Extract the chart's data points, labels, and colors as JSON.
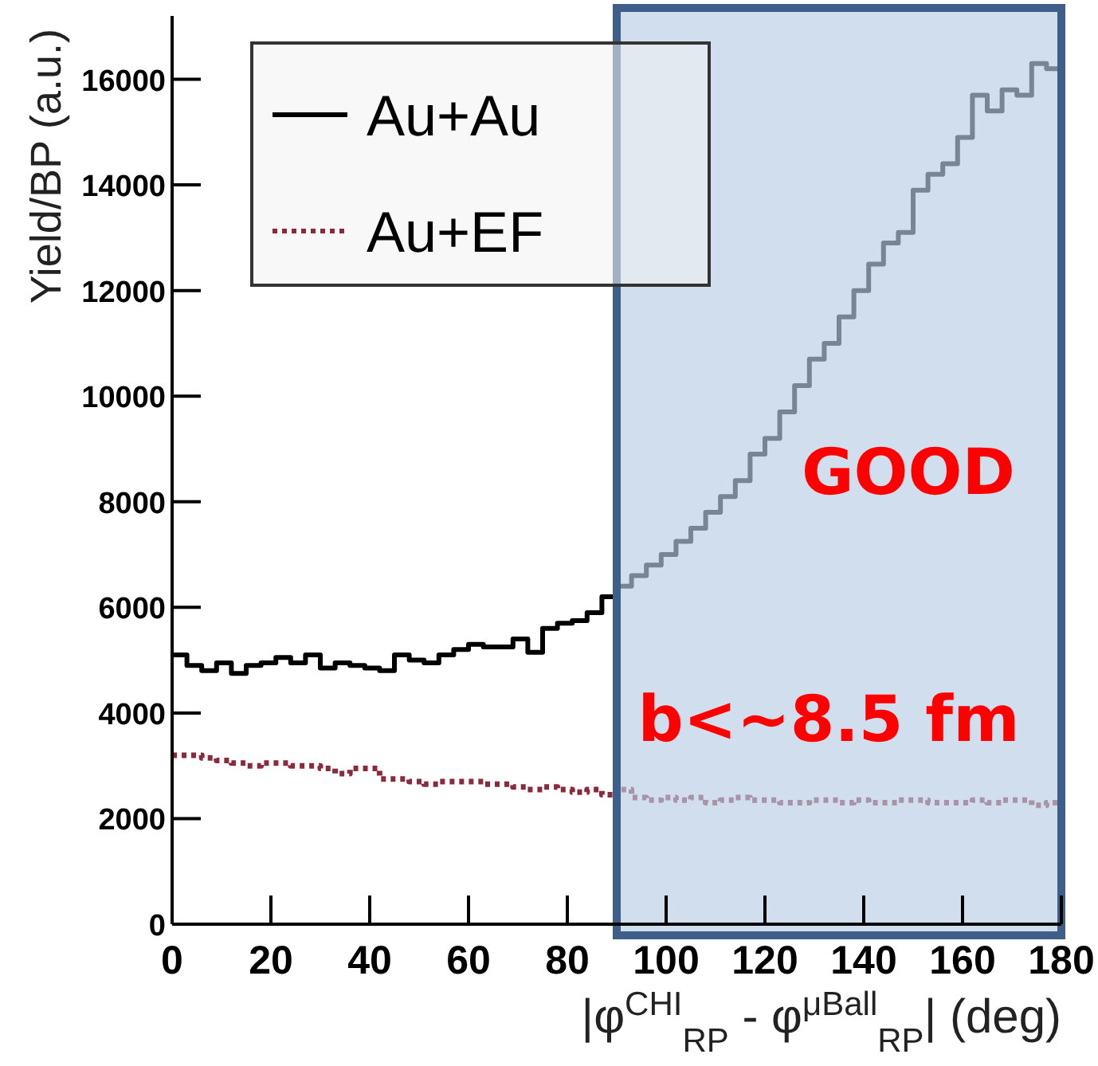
{
  "chart_data": {
    "type": "histogram",
    "xlabel": "|φ$^{CHI}$$_{RP}$ - φ$^{μBall}$$_{RP}$| (deg)",
    "ylabel": "Yield/BP (a.u.)",
    "bins": [
      0,
      3,
      6,
      9,
      12,
      15,
      18,
      21,
      24,
      27,
      30,
      33,
      36,
      39,
      42,
      45,
      48,
      51,
      54,
      57,
      60,
      63,
      66,
      69,
      72,
      75,
      78,
      81,
      84,
      87,
      90,
      93,
      96,
      99,
      102,
      105,
      108,
      111,
      114,
      117,
      120,
      123,
      126,
      129,
      132,
      135,
      138,
      141,
      144,
      147,
      150,
      153,
      156,
      159,
      162,
      165,
      168,
      171,
      174,
      177,
      180
    ],
    "series": [
      {
        "name": "Au+Au",
        "color": "#000000",
        "line_style": "solid",
        "values": [
          5100,
          4900,
          4800,
          4950,
          4750,
          4900,
          4950,
          5050,
          4950,
          5100,
          4850,
          4950,
          4900,
          4850,
          4800,
          5100,
          5000,
          4950,
          5100,
          5200,
          5300,
          5250,
          5250,
          5400,
          5150,
          5600,
          5700,
          5750,
          5900,
          6200,
          6400,
          6600,
          6800,
          7000,
          7250,
          7500,
          7800,
          8100,
          8400,
          8900,
          9200,
          9700,
          10200,
          10700,
          11000,
          11500,
          12000,
          12500,
          12900,
          13100,
          13900,
          14200,
          14400,
          14900,
          15700,
          15400,
          15800,
          15700,
          16300,
          16200
        ]
      },
      {
        "name": "Au+EF",
        "color": "#8b2a3a",
        "line_style": "dotted",
        "values": [
          3200,
          3200,
          3150,
          3100,
          3050,
          3000,
          3050,
          3050,
          3000,
          3000,
          2950,
          2850,
          2950,
          2950,
          2750,
          2750,
          2700,
          2650,
          2700,
          2700,
          2700,
          2650,
          2650,
          2600,
          2550,
          2600,
          2550,
          2500,
          2550,
          2450,
          2550,
          2400,
          2350,
          2400,
          2350,
          2400,
          2300,
          2350,
          2400,
          2350,
          2350,
          2300,
          2300,
          2350,
          2350,
          2300,
          2350,
          2300,
          2300,
          2350,
          2350,
          2300,
          2300,
          2300,
          2350,
          2300,
          2350,
          2350,
          2250,
          2300
        ]
      }
    ],
    "xlim": [
      0,
      180
    ],
    "xticks": [
      0,
      20,
      40,
      60,
      80,
      100,
      120,
      140,
      160,
      180
    ],
    "ylim": [
      0,
      17200
    ],
    "yticks": [
      0,
      2000,
      4000,
      6000,
      8000,
      10000,
      12000,
      14000,
      16000
    ],
    "bands": [
      {
        "axis": "x",
        "from": 90,
        "to": 180,
        "color": "#b8cce4"
      }
    ],
    "annotations": [
      "GOOD",
      "b<~8.5 fm"
    ],
    "legend": "top left"
  }
}
